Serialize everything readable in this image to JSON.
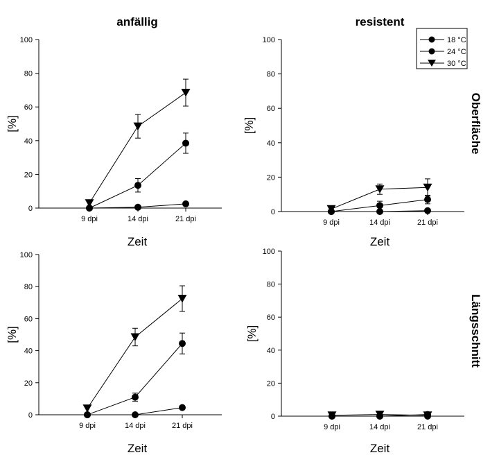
{
  "column_titles": [
    "anfällig",
    "resistent"
  ],
  "row_titles": [
    "Oberfläche",
    "Längsschnitt"
  ],
  "legend": {
    "placement": "top-right",
    "entries": [
      {
        "label": "18 °C",
        "marker": "circle"
      },
      {
        "label": "24 °C",
        "marker": "circle"
      },
      {
        "label": "30 °C",
        "marker": "triangle-down"
      }
    ]
  },
  "chart_data": [
    {
      "type": "line",
      "panel": "top-left",
      "xlabel": "Zeit",
      "ylabel": "[%]",
      "ylim": [
        0,
        100
      ],
      "yticks": [
        "0",
        "20",
        "40",
        "60",
        "80",
        "100"
      ],
      "categories": [
        "9 dpi",
        "14 dpi",
        "21 dpi"
      ],
      "series": [
        {
          "name": "18 °C",
          "marker": "circle",
          "values": [
            0,
            0.5,
            2.5
          ],
          "errors": [
            0,
            0.5,
            1
          ]
        },
        {
          "name": "24 °C",
          "marker": "circle",
          "values": [
            0,
            13.5,
            38.5
          ],
          "errors": [
            0,
            4,
            6
          ]
        },
        {
          "name": "30 °C",
          "marker": "triangle-down",
          "values": [
            3,
            48.5,
            68.5
          ],
          "errors": [
            0,
            7,
            8
          ]
        }
      ]
    },
    {
      "type": "line",
      "panel": "top-right",
      "xlabel": "Zeit",
      "ylabel": "[%]",
      "ylim": [
        0,
        100
      ],
      "yticks": [
        "0",
        "20",
        "40",
        "60",
        "80",
        "100"
      ],
      "categories": [
        "9 dpi",
        "14 dpi",
        "21 dpi"
      ],
      "series": [
        {
          "name": "18 °C",
          "marker": "circle",
          "values": [
            0,
            0,
            0.5
          ],
          "errors": [
            0,
            0.3,
            0.3
          ]
        },
        {
          "name": "24 °C",
          "marker": "circle",
          "values": [
            0,
            3.5,
            7
          ],
          "errors": [
            0,
            2.5,
            2.5
          ]
        },
        {
          "name": "30 °C",
          "marker": "triangle-down",
          "values": [
            1.5,
            13,
            14
          ],
          "errors": [
            0,
            3,
            5
          ]
        }
      ]
    },
    {
      "type": "line",
      "panel": "bottom-left",
      "xlabel": "Zeit",
      "ylabel": "[%]",
      "ylim": [
        0,
        100
      ],
      "yticks": [
        "0",
        "20",
        "40",
        "60",
        "80",
        "100"
      ],
      "categories": [
        "9 dpi",
        "14 dpi",
        "21 dpi"
      ],
      "series": [
        {
          "name": "18 °C",
          "marker": "circle",
          "values": [
            0,
            0,
            4.5
          ],
          "errors": [
            0,
            0,
            1
          ]
        },
        {
          "name": "24 °C",
          "marker": "circle",
          "values": [
            0,
            11,
            44.5
          ],
          "errors": [
            0,
            2.5,
            6.5
          ]
        },
        {
          "name": "30 °C",
          "marker": "triangle-down",
          "values": [
            4,
            48.5,
            72.5
          ],
          "errors": [
            0,
            5.5,
            8
          ]
        }
      ]
    },
    {
      "type": "line",
      "panel": "bottom-right",
      "xlabel": "Zeit",
      "ylabel": "[%]",
      "ylim": [
        0,
        100
      ],
      "yticks": [
        "0",
        "20",
        "40",
        "60",
        "80",
        "100"
      ],
      "categories": [
        "9 dpi",
        "14 dpi",
        "21 dpi"
      ],
      "series": [
        {
          "name": "18 °C",
          "marker": "circle",
          "values": [
            0,
            0,
            0
          ],
          "errors": [
            0,
            0,
            0
          ]
        },
        {
          "name": "24 °C",
          "marker": "circle",
          "values": [
            0,
            0,
            1
          ],
          "errors": [
            0,
            0,
            0.5
          ]
        },
        {
          "name": "30 °C",
          "marker": "triangle-down",
          "values": [
            0.5,
            1,
            0.5
          ],
          "errors": [
            0,
            0,
            0
          ]
        }
      ]
    }
  ]
}
